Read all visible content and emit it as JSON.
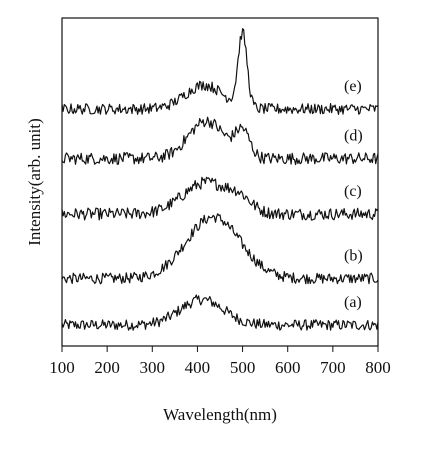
{
  "chart_data": {
    "type": "line",
    "title": "",
    "xlabel": "Wavelength(nm)",
    "ylabel": "Intensity(arb. unit)",
    "xlim": [
      100,
      800
    ],
    "xticks": [
      "100",
      "200",
      "300",
      "400",
      "500",
      "600",
      "700",
      "800"
    ],
    "yticks_visible": false,
    "grid": false,
    "series": [
      {
        "label": "(a)",
        "baseline": 0.0,
        "noise": 0.018,
        "peaks": [
          {
            "center": 410,
            "width": 48,
            "height": 0.085
          }
        ]
      },
      {
        "label": "(b)",
        "baseline": 0.155,
        "noise": 0.018,
        "peaks": [
          {
            "center": 435,
            "width": 60,
            "height": 0.205
          }
        ]
      },
      {
        "label": "(c)",
        "baseline": 0.37,
        "noise": 0.02,
        "peaks": [
          {
            "center": 420,
            "width": 52,
            "height": 0.105
          },
          {
            "center": 495,
            "width": 25,
            "height": 0.035
          }
        ]
      },
      {
        "label": "(d)",
        "baseline": 0.555,
        "noise": 0.02,
        "peaks": [
          {
            "center": 420,
            "width": 40,
            "height": 0.125
          },
          {
            "center": 500,
            "width": 16,
            "height": 0.085
          }
        ]
      },
      {
        "label": "(e)",
        "baseline": 0.72,
        "noise": 0.018,
        "peaks": [
          {
            "center": 415,
            "width": 42,
            "height": 0.08
          },
          {
            "center": 500,
            "width": 10,
            "height": 0.245
          }
        ]
      }
    ]
  }
}
